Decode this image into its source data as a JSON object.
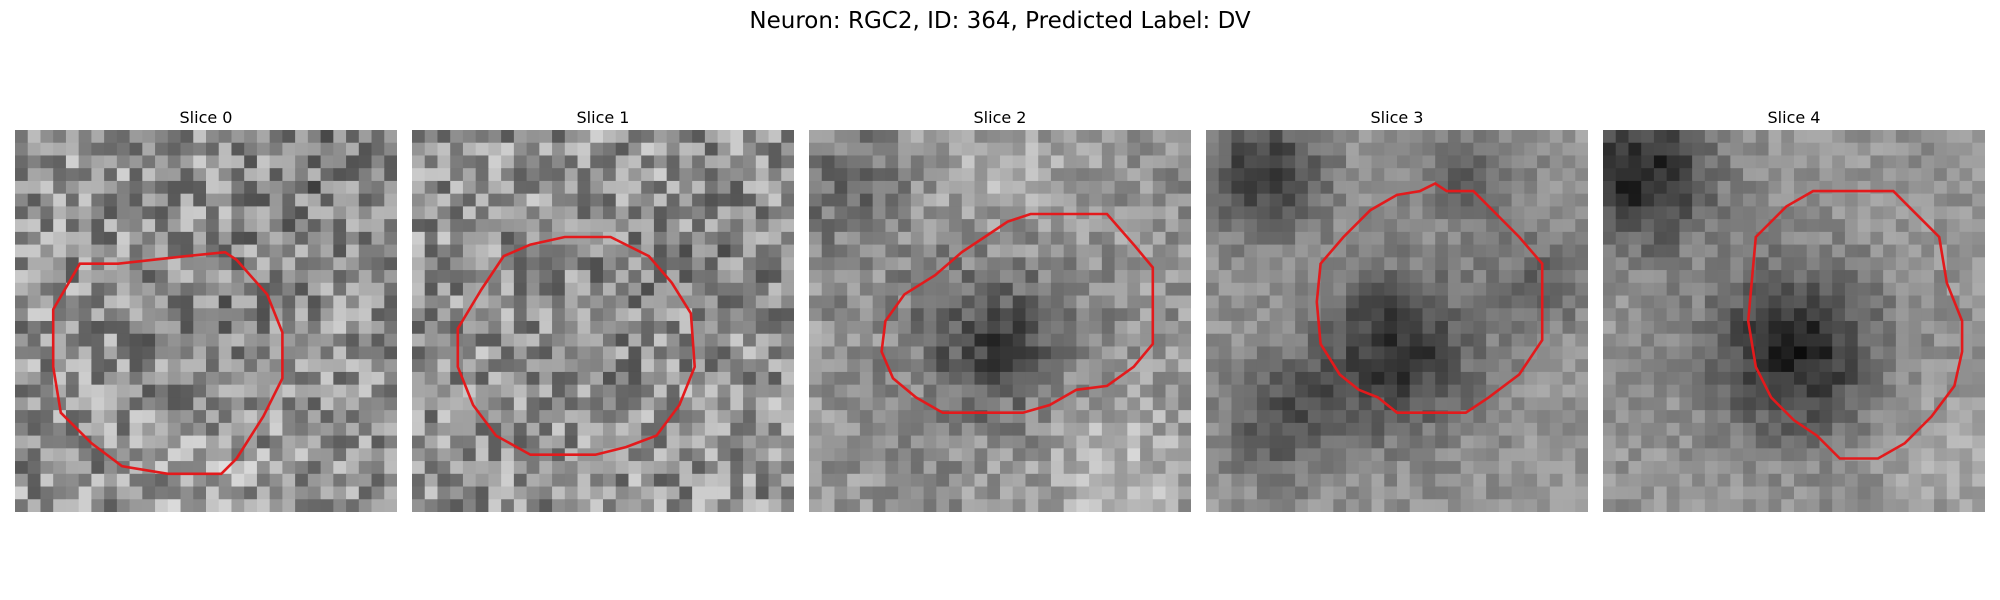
{
  "figure": {
    "title": "Neuron: RGC2, ID: 364, Predicted Label: DV",
    "contour_color": "#e31a1c",
    "colormap": "gray"
  },
  "panels": [
    {
      "title": "Slice 0",
      "blobs": [
        [
          0.48,
          0.5,
          0.22,
          -0.08
        ],
        [
          0.8,
          0.15,
          0.18,
          -0.1
        ],
        [
          0.5,
          0.9,
          0.2,
          0.06
        ]
      ],
      "noise": 0.3,
      "contour": [
        [
          0.17,
          0.35
        ],
        [
          0.27,
          0.35
        ],
        [
          0.45,
          0.33
        ],
        [
          0.55,
          0.32
        ],
        [
          0.58,
          0.34
        ],
        [
          0.66,
          0.43
        ],
        [
          0.7,
          0.53
        ],
        [
          0.7,
          0.65
        ],
        [
          0.65,
          0.75
        ],
        [
          0.58,
          0.86
        ],
        [
          0.54,
          0.9
        ],
        [
          0.4,
          0.9
        ],
        [
          0.28,
          0.88
        ],
        [
          0.2,
          0.82
        ],
        [
          0.12,
          0.74
        ],
        [
          0.1,
          0.62
        ],
        [
          0.1,
          0.47
        ]
      ]
    },
    {
      "title": "Slice 1",
      "blobs": [
        [
          0.5,
          0.5,
          0.22,
          -0.06
        ],
        [
          0.85,
          0.3,
          0.15,
          -0.08
        ]
      ],
      "noise": 0.3,
      "contour": [
        [
          0.18,
          0.42
        ],
        [
          0.24,
          0.33
        ],
        [
          0.31,
          0.3
        ],
        [
          0.4,
          0.28
        ],
        [
          0.52,
          0.28
        ],
        [
          0.62,
          0.33
        ],
        [
          0.68,
          0.4
        ],
        [
          0.73,
          0.48
        ],
        [
          0.74,
          0.62
        ],
        [
          0.7,
          0.72
        ],
        [
          0.64,
          0.8
        ],
        [
          0.56,
          0.83
        ],
        [
          0.48,
          0.85
        ],
        [
          0.31,
          0.85
        ],
        [
          0.22,
          0.8
        ],
        [
          0.16,
          0.72
        ],
        [
          0.12,
          0.62
        ],
        [
          0.12,
          0.52
        ]
      ]
    },
    {
      "title": "Slice 2",
      "blobs": [
        [
          0.48,
          0.55,
          0.2,
          -0.3
        ],
        [
          0.1,
          0.15,
          0.18,
          -0.15
        ],
        [
          0.5,
          0.1,
          0.2,
          0.1
        ],
        [
          0.8,
          0.9,
          0.2,
          0.15
        ]
      ],
      "noise": 0.18,
      "contour": [
        [
          0.2,
          0.5
        ],
        [
          0.25,
          0.43
        ],
        [
          0.33,
          0.38
        ],
        [
          0.4,
          0.32
        ],
        [
          0.46,
          0.28
        ],
        [
          0.52,
          0.24
        ],
        [
          0.58,
          0.22
        ],
        [
          0.78,
          0.22
        ],
        [
          0.85,
          0.3
        ],
        [
          0.9,
          0.36
        ],
        [
          0.9,
          0.56
        ],
        [
          0.85,
          0.62
        ],
        [
          0.78,
          0.67
        ],
        [
          0.7,
          0.68
        ],
        [
          0.63,
          0.72
        ],
        [
          0.56,
          0.74
        ],
        [
          0.35,
          0.74
        ],
        [
          0.28,
          0.7
        ],
        [
          0.22,
          0.65
        ],
        [
          0.19,
          0.58
        ]
      ]
    },
    {
      "title": "Slice 3",
      "blobs": [
        [
          0.5,
          0.58,
          0.2,
          -0.4
        ],
        [
          0.15,
          0.12,
          0.16,
          -0.35
        ],
        [
          0.7,
          0.12,
          0.14,
          -0.2
        ],
        [
          0.2,
          0.75,
          0.16,
          -0.25
        ],
        [
          0.88,
          0.4,
          0.12,
          -0.2
        ]
      ],
      "noise": 0.12,
      "contour": [
        [
          0.3,
          0.35
        ],
        [
          0.36,
          0.28
        ],
        [
          0.43,
          0.21
        ],
        [
          0.5,
          0.17
        ],
        [
          0.56,
          0.16
        ],
        [
          0.6,
          0.14
        ],
        [
          0.63,
          0.16
        ],
        [
          0.7,
          0.16
        ],
        [
          0.76,
          0.22
        ],
        [
          0.82,
          0.28
        ],
        [
          0.88,
          0.35
        ],
        [
          0.88,
          0.55
        ],
        [
          0.82,
          0.64
        ],
        [
          0.74,
          0.7
        ],
        [
          0.68,
          0.74
        ],
        [
          0.5,
          0.74
        ],
        [
          0.45,
          0.7
        ],
        [
          0.4,
          0.68
        ],
        [
          0.35,
          0.64
        ],
        [
          0.3,
          0.56
        ],
        [
          0.29,
          0.45
        ]
      ]
    },
    {
      "title": "Slice 4",
      "blobs": [
        [
          0.5,
          0.58,
          0.21,
          -0.45
        ],
        [
          0.1,
          0.12,
          0.18,
          -0.45
        ],
        [
          0.9,
          0.85,
          0.14,
          0.1
        ]
      ],
      "noise": 0.12,
      "contour": [
        [
          0.4,
          0.28
        ],
        [
          0.48,
          0.2
        ],
        [
          0.55,
          0.16
        ],
        [
          0.76,
          0.16
        ],
        [
          0.8,
          0.2
        ],
        [
          0.84,
          0.24
        ],
        [
          0.88,
          0.28
        ],
        [
          0.9,
          0.4
        ],
        [
          0.94,
          0.5
        ],
        [
          0.94,
          0.58
        ],
        [
          0.92,
          0.67
        ],
        [
          0.86,
          0.75
        ],
        [
          0.79,
          0.82
        ],
        [
          0.72,
          0.86
        ],
        [
          0.62,
          0.86
        ],
        [
          0.56,
          0.8
        ],
        [
          0.5,
          0.76
        ],
        [
          0.44,
          0.7
        ],
        [
          0.4,
          0.62
        ],
        [
          0.38,
          0.5
        ]
      ]
    }
  ]
}
